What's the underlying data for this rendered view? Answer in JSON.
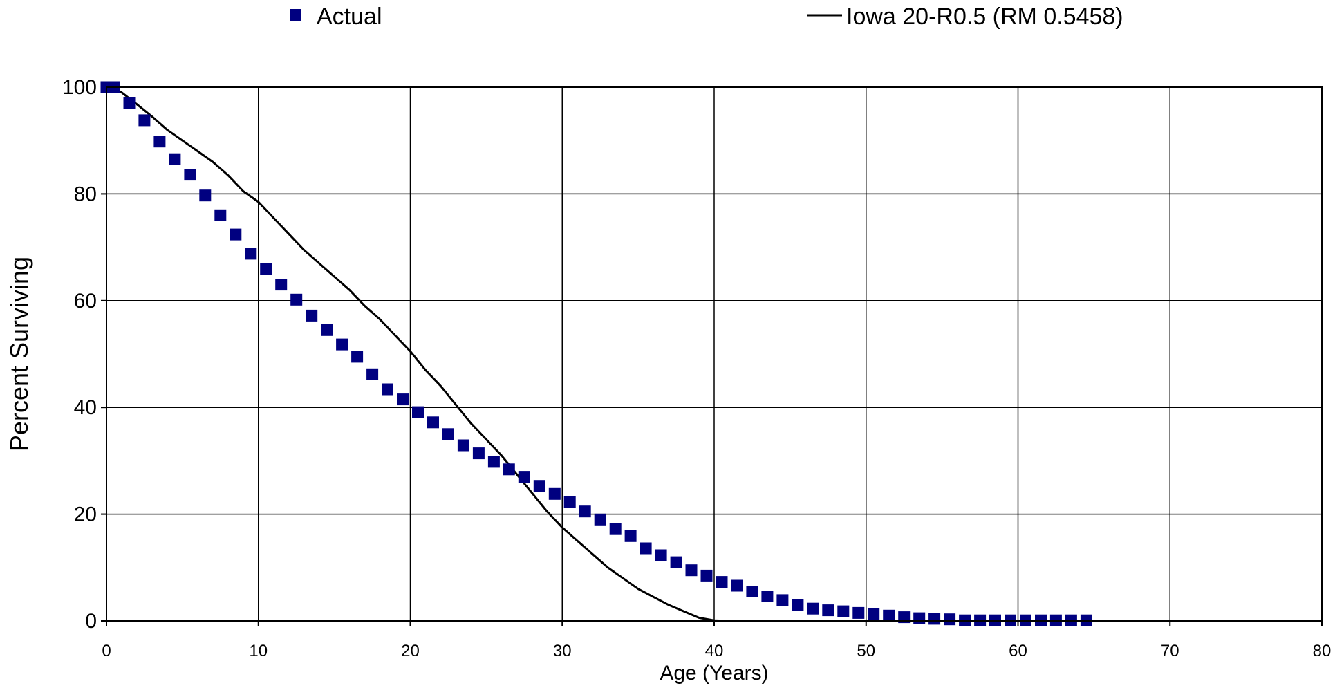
{
  "chart_data": {
    "type": "scatter",
    "title": "",
    "xlabel": "Age (Years)",
    "ylabel": "Percent Surviving",
    "xlim": [
      0,
      80
    ],
    "ylim": [
      0,
      100
    ],
    "xticks": [
      0,
      10,
      20,
      30,
      40,
      50,
      60,
      70,
      80
    ],
    "yticks": [
      0,
      20,
      40,
      60,
      80,
      100
    ],
    "grid": true,
    "legend_position": "top",
    "series": [
      {
        "name": "Actual",
        "style": "markers",
        "color": "#000080",
        "marker": "square",
        "x": [
          0,
          0.5,
          1.5,
          2.5,
          3.5,
          4.5,
          5.5,
          6.5,
          7.5,
          8.5,
          9.5,
          10.5,
          11.5,
          12.5,
          13.5,
          14.5,
          15.5,
          16.5,
          17.5,
          18.5,
          19.5,
          20.5,
          21.5,
          22.5,
          23.5,
          24.5,
          25.5,
          26.5,
          27.5,
          28.5,
          29.5,
          30.5,
          31.5,
          32.5,
          33.5,
          34.5,
          35.5,
          36.5,
          37.5,
          38.5,
          39.5,
          40.5,
          41.5,
          42.5,
          43.5,
          44.5,
          45.5,
          46.5,
          47.5,
          48.5,
          49.5,
          50.5,
          51.5,
          52.5,
          53.5,
          54.5,
          55.5,
          56.5,
          57.5,
          58.5,
          59.5,
          60.5,
          61.5,
          62.5,
          63.5,
          64.5
        ],
        "y": [
          100,
          100,
          97,
          93.8,
          89.8,
          86.5,
          83.6,
          79.7,
          76,
          72.4,
          68.8,
          66,
          63,
          60.2,
          57.2,
          54.5,
          51.8,
          49.5,
          46.2,
          43.4,
          41.5,
          39.1,
          37.2,
          35,
          32.9,
          31.4,
          29.8,
          28.4,
          27,
          25.3,
          23.8,
          22.3,
          20.5,
          19,
          17.2,
          15.9,
          13.6,
          12.3,
          11,
          9.5,
          8.5,
          7.3,
          6.6,
          5.5,
          4.6,
          3.9,
          3,
          2.3,
          2,
          1.8,
          1.5,
          1.3,
          1,
          0.7,
          0.5,
          0.4,
          0.3,
          0.1,
          0.1,
          0.1,
          0.1,
          0.1,
          0.1,
          0.1,
          0.1,
          0.1
        ]
      },
      {
        "name": "Iowa 20-R0.5 (RM 0.5458)",
        "style": "line",
        "color": "#000000",
        "x": [
          0,
          0.5,
          1,
          2,
          3,
          4,
          5,
          6,
          7,
          8,
          9,
          10,
          11,
          12,
          13,
          14,
          15,
          16,
          17,
          18,
          19,
          20,
          21,
          22,
          23,
          24,
          25,
          26,
          27,
          28,
          29,
          30,
          31,
          32,
          33,
          34,
          35,
          36,
          37,
          38,
          39,
          40,
          41,
          42,
          43,
          44,
          45,
          46,
          47,
          48,
          49,
          50
        ],
        "y": [
          100,
          99.8,
          99,
          96.8,
          94.5,
          92,
          90,
          88,
          86,
          83.5,
          80.5,
          78.5,
          75.5,
          72.5,
          69.5,
          67,
          64.5,
          62,
          59,
          56.5,
          53.5,
          50.5,
          47,
          44,
          40.5,
          37,
          34,
          31,
          27.5,
          24,
          20.5,
          17.5,
          15,
          12.5,
          10,
          8,
          6,
          4.5,
          3,
          1.8,
          0.6,
          0.1,
          0,
          0,
          0,
          0,
          0,
          0,
          0,
          0,
          0,
          0
        ]
      }
    ]
  }
}
